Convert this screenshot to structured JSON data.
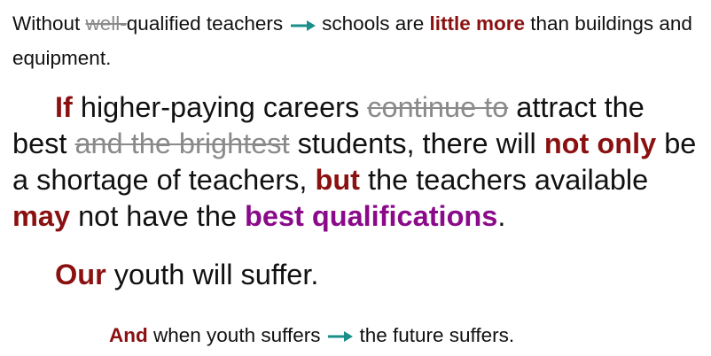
{
  "intro": {
    "p1": "Without ",
    "struck": "well-",
    "p2": "qualified teachers",
    "p3": "schools are ",
    "emphasis": "little more",
    "p4": " than buildings and equipment."
  },
  "main": {
    "if": "If",
    "p1": " higher-paying careers ",
    "struck1": "continue to",
    "p2": " attract the best ",
    "struck2": "and the brightest",
    "p3": " students, there will ",
    "not_only": "not only",
    "p4": " be a shortage of teachers, ",
    "but": "but",
    "p5": " the teachers available ",
    "may": "may",
    "p6": " not have the ",
    "best": "best qualifications",
    "p7": "."
  },
  "youth": {
    "our": "Our",
    "rest": " youth will suffer."
  },
  "future": {
    "and": "And",
    "p1": " when youth suffers",
    "p2": "the future suffers."
  },
  "colors": {
    "emphasis_red": "#8b1010",
    "emphasis_purple": "#8a0a8a",
    "arrow_teal": "#1a8f8a",
    "strikethrough_gray": "#8a8a8a"
  },
  "icons": {
    "arrow": "right-arrow-icon"
  }
}
